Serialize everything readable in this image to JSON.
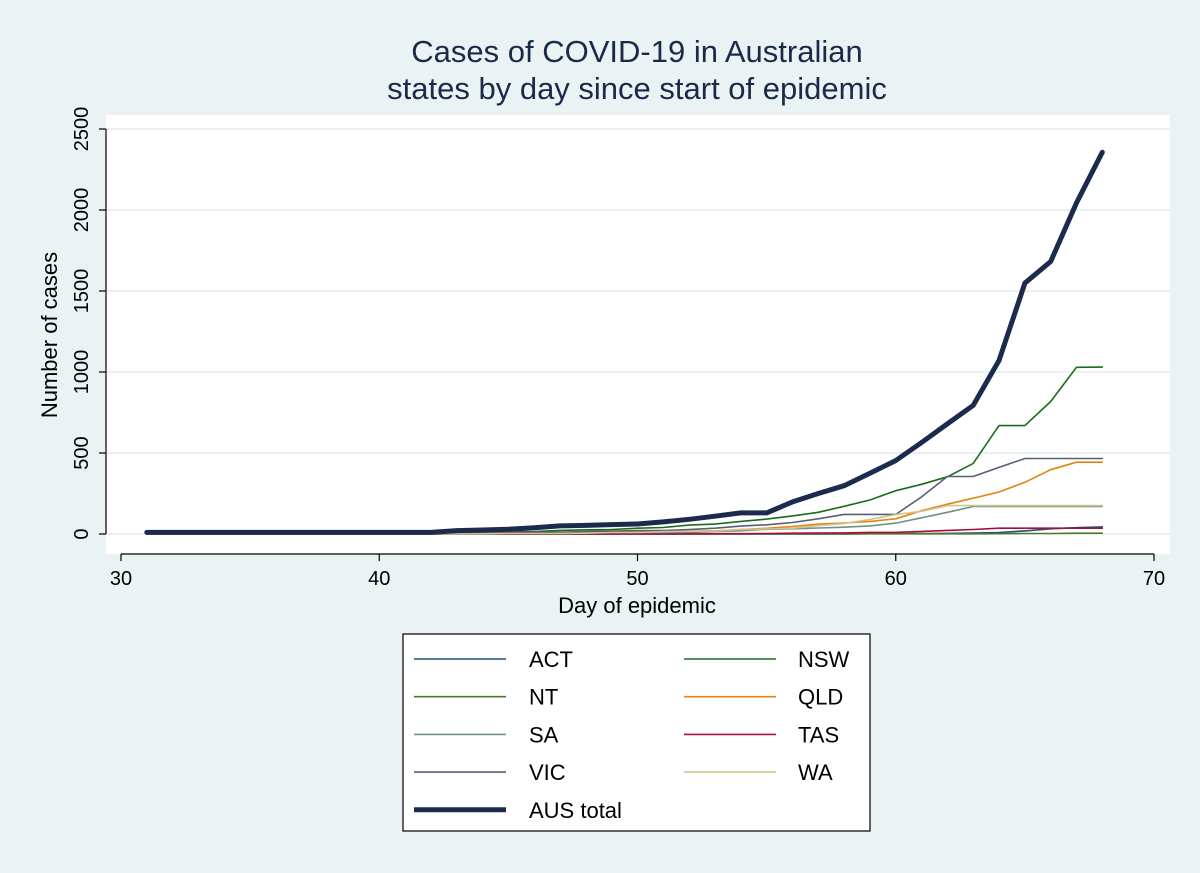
{
  "chart_data": {
    "type": "line",
    "title_lines": [
      "Cases of COVID-19 in Australian",
      "states by day since start of epidemic"
    ],
    "xlabel": "Day of epidemic",
    "ylabel": "Number of cases",
    "xlim": [
      29.5,
      70
    ],
    "ylim": [
      0,
      2500
    ],
    "xticks": [
      30,
      40,
      50,
      60,
      70
    ],
    "yticks": [
      0,
      500,
      1000,
      1500,
      2000,
      2500
    ],
    "grid": "horizontal",
    "legend_placement": "bottom",
    "x": [
      31,
      32,
      33,
      34,
      35,
      36,
      37,
      38,
      39,
      40,
      41,
      42,
      43,
      44,
      45,
      46,
      47,
      48,
      49,
      50,
      51,
      52,
      53,
      54,
      55,
      56,
      57,
      58,
      59,
      60,
      61,
      62,
      63,
      64,
      65,
      66,
      67,
      68
    ],
    "series": [
      {
        "name": "ACT",
        "color": "#1f4e79",
        "width": 1.6,
        "values": [
          0,
          0,
          0,
          0,
          0,
          0,
          0,
          0,
          0,
          0,
          0,
          0,
          0,
          0,
          0,
          0,
          0,
          0,
          0,
          0,
          0,
          0,
          0,
          0,
          0,
          0,
          0,
          0,
          2,
          2,
          3,
          4,
          6,
          9,
          19,
          32,
          39,
          44
        ]
      },
      {
        "name": "NSW",
        "color": "#1b6b1b",
        "width": 1.6,
        "values": [
          4,
          4,
          4,
          4,
          4,
          4,
          4,
          4,
          4,
          4,
          4,
          4,
          6,
          8,
          14,
          15,
          22,
          26,
          28,
          36,
          40,
          55,
          61,
          78,
          92,
          112,
          134,
          171,
          210,
          267,
          307,
          353,
          436,
          669,
          669,
          818,
          1029,
          1030
        ]
      },
      {
        "name": "NT",
        "color": "#4d7a2a",
        "width": 1.6,
        "values": [
          0,
          0,
          0,
          0,
          0,
          0,
          0,
          0,
          0,
          0,
          0,
          0,
          0,
          0,
          0,
          0,
          0,
          0,
          0,
          0,
          0,
          0,
          0,
          0,
          0,
          0,
          0,
          0,
          1,
          1,
          1,
          1,
          1,
          2,
          3,
          3,
          5,
          5
        ]
      },
      {
        "name": "QLD",
        "color": "#e8830c",
        "width": 1.6,
        "values": [
          2,
          2,
          2,
          2,
          2,
          2,
          2,
          2,
          2,
          2,
          2,
          2,
          3,
          4,
          5,
          5,
          7,
          8,
          13,
          14,
          15,
          17,
          20,
          27,
          35,
          46,
          61,
          68,
          78,
          94,
          144,
          184,
          221,
          259,
          319,
          397,
          443,
          443
        ]
      },
      {
        "name": "SA",
        "color": "#6f9186",
        "width": 1.6,
        "values": [
          0,
          0,
          0,
          0,
          0,
          0,
          0,
          0,
          0,
          0,
          0,
          0,
          0,
          1,
          2,
          2,
          3,
          5,
          5,
          7,
          7,
          9,
          16,
          20,
          29,
          32,
          37,
          42,
          50,
          67,
          100,
          134,
          170,
          170,
          170,
          170,
          170,
          170
        ]
      },
      {
        "name": "TAS",
        "color": "#a50f3c",
        "width": 1.6,
        "values": [
          0,
          0,
          0,
          0,
          0,
          0,
          0,
          0,
          0,
          0,
          0,
          0,
          0,
          0,
          0,
          0,
          0,
          0,
          0,
          0,
          0,
          1,
          2,
          2,
          3,
          5,
          6,
          7,
          10,
          10,
          16,
          22,
          28,
          36,
          36,
          36,
          36,
          36
        ]
      },
      {
        "name": "VIC",
        "color": "#556075",
        "width": 1.6,
        "values": [
          3,
          3,
          3,
          3,
          3,
          3,
          3,
          3,
          3,
          3,
          3,
          3,
          4,
          9,
          10,
          11,
          11,
          15,
          18,
          21,
          21,
          27,
          36,
          49,
          57,
          71,
          94,
          121,
          121,
          121,
          229,
          355,
          355,
          411,
          466,
          466,
          466,
          466
        ]
      },
      {
        "name": "WA",
        "color": "#cfc48d",
        "width": 1.6,
        "values": [
          0,
          0,
          0,
          0,
          0,
          0,
          0,
          0,
          0,
          0,
          0,
          0,
          0,
          1,
          3,
          3,
          4,
          5,
          9,
          9,
          14,
          17,
          18,
          28,
          31,
          35,
          52,
          64,
          90,
          120,
          140,
          175,
          175,
          175,
          175,
          175,
          175,
          175
        ]
      },
      {
        "name": "AUS total",
        "color": "#1c2a4d",
        "width": 5,
        "values": [
          10,
          10,
          10,
          10,
          10,
          10,
          10,
          10,
          10,
          10,
          10,
          10,
          21,
          25,
          29,
          38,
          50,
          53,
          58,
          62,
          75,
          91,
          110,
          130,
          130,
          198,
          250,
          298,
          375,
          454,
          565,
          680,
          794,
          1071,
          1549,
          1682,
          2044,
          2357
        ]
      }
    ]
  }
}
